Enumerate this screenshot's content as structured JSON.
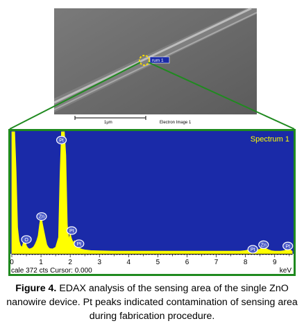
{
  "sem_image": {
    "overlay_label": "rum 1",
    "scale_label": "1μm",
    "image_label": "Electron Image 1"
  },
  "colors": {
    "plot_background": "#1a2aa8",
    "spectrum_fill": "#ffff00",
    "connector_lines": "#1f8a1f",
    "selection_circle": "#ffe000"
  },
  "chart_data": {
    "type": "area",
    "title": "Spectrum 1",
    "xlabel": "keV",
    "ylabel": "",
    "xlim": [
      0,
      9.6
    ],
    "ylim": [
      0,
      372
    ],
    "x_ticks": [
      "0",
      "1",
      "2",
      "3",
      "4",
      "5",
      "6",
      "7",
      "8",
      "9"
    ],
    "footer": "cale 372 cts Cursor: 0.000",
    "spectrum": {
      "x": [
        0,
        0.05,
        0.1,
        0.15,
        0.2,
        0.25,
        0.3,
        0.35,
        0.4,
        0.45,
        0.5,
        0.55,
        0.6,
        0.65,
        0.7,
        0.75,
        0.8,
        0.85,
        0.9,
        0.95,
        1.0,
        1.05,
        1.1,
        1.15,
        1.2,
        1.25,
        1.3,
        1.4,
        1.5,
        1.6,
        1.65,
        1.7,
        1.75,
        1.8,
        1.85,
        1.9,
        1.95,
        2.0,
        2.05,
        2.1,
        2.15,
        2.2,
        2.25,
        2.3,
        2.4,
        2.5,
        2.7,
        3.0,
        3.5,
        4.0,
        5.0,
        6.0,
        7.0,
        7.8,
        8.0,
        8.1,
        8.2,
        8.3,
        8.4,
        8.5,
        8.55,
        8.6,
        8.65,
        8.7,
        8.8,
        8.9,
        9.0,
        9.2,
        9.35,
        9.4,
        9.45,
        9.5,
        9.6
      ],
      "y": [
        372,
        372,
        372,
        250,
        80,
        40,
        25,
        20,
        35,
        48,
        25,
        18,
        15,
        16,
        18,
        22,
        30,
        40,
        55,
        90,
        118,
        92,
        70,
        48,
        28,
        20,
        16,
        15,
        20,
        50,
        240,
        372,
        372,
        372,
        300,
        90,
        45,
        62,
        45,
        35,
        40,
        30,
        22,
        18,
        14,
        12,
        10,
        9,
        8,
        8,
        8,
        8,
        8,
        8,
        10,
        12,
        14,
        18,
        12,
        14,
        22,
        32,
        28,
        16,
        12,
        9,
        8,
        8,
        10,
        18,
        28,
        14,
        8
      ]
    },
    "peak_labels": [
      {
        "label": "Pt",
        "x": 1.7,
        "y": 372
      },
      {
        "label": "Zn",
        "x": 1.02,
        "y": 118
      },
      {
        "label": "O",
        "x": 0.5,
        "y": 48
      },
      {
        "label": "Pt",
        "x": 2.05,
        "y": 75
      },
      {
        "label": "Pt",
        "x": 2.3,
        "y": 35
      },
      {
        "label": "Pt",
        "x": 8.25,
        "y": 18
      },
      {
        "label": "Zn",
        "x": 8.62,
        "y": 32
      },
      {
        "label": "Pt",
        "x": 9.45,
        "y": 28
      }
    ]
  },
  "caption": {
    "label": "Figure 4.",
    "text": " EDAX analysis of the sensing area of the single ZnO nanowire device. Pt peaks indicated contamination of sensing area during fabrication procedure."
  }
}
